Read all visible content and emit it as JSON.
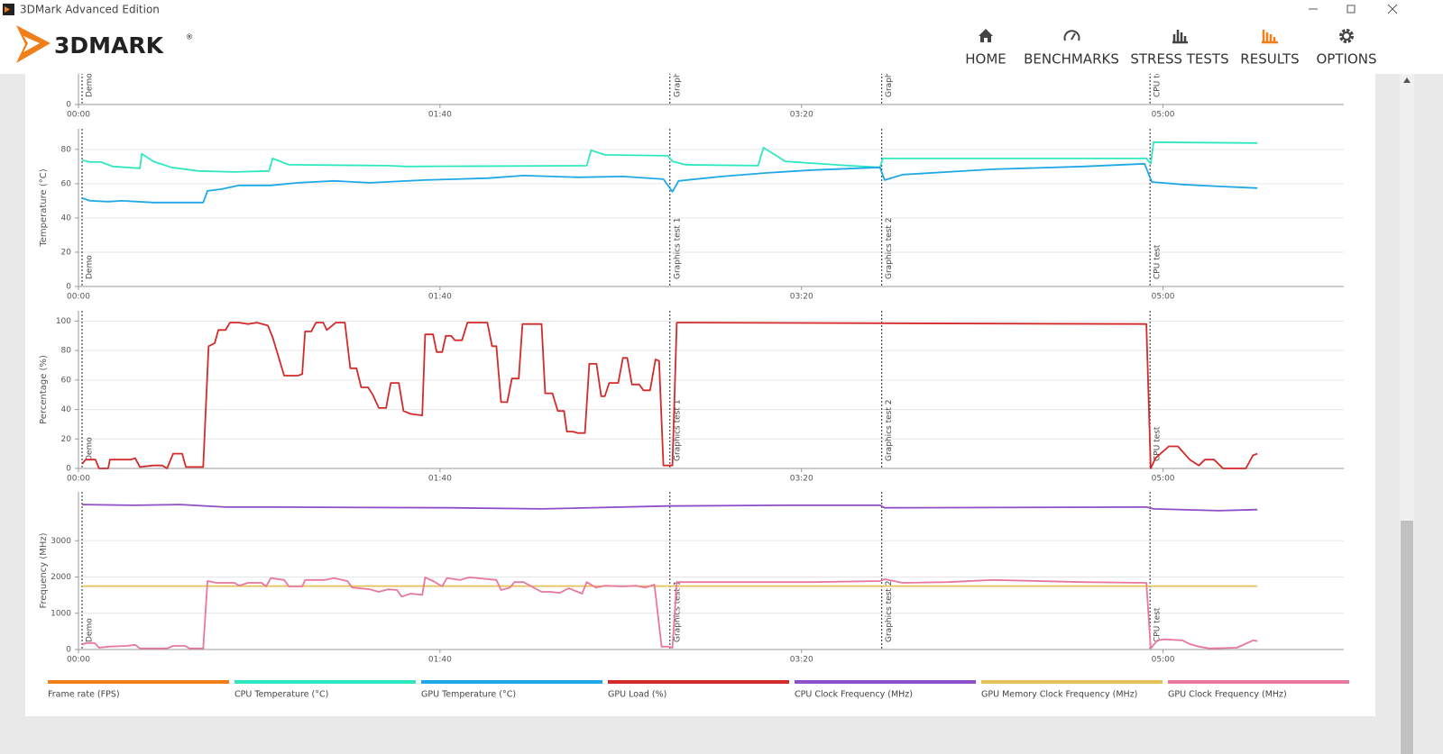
{
  "window": {
    "title": "3DMark Advanced Edition"
  },
  "brand": {
    "name": "3DMARK",
    "mark": "®"
  },
  "nav": [
    {
      "label": "HOME"
    },
    {
      "label": "BENCHMARKS"
    },
    {
      "label": "STRESS TESTS"
    },
    {
      "label": "RESULTS",
      "active": true
    },
    {
      "label": "OPTIONS"
    }
  ],
  "markers": [
    {
      "x": 1.0,
      "label": "Demo"
    },
    {
      "x": 163.6,
      "label": "Graphics test 1"
    },
    {
      "x": 222.2,
      "label": "Graphics test 2"
    },
    {
      "x": 296.4,
      "label": "CPU test"
    }
  ],
  "legend": [
    {
      "name": "Frame rate (FPS)",
      "color": "#f07f1a"
    },
    {
      "name": "CPU Temperature (°C)",
      "color": "#2ee8c0"
    },
    {
      "name": "GPU Temperature (°C)",
      "color": "#1ea8e8"
    },
    {
      "name": "GPU Load (%)",
      "color": "#d42a2a"
    },
    {
      "name": "CPU Clock Frequency (MHz)",
      "color": "#8e4fc9"
    },
    {
      "name": "GPU Memory Clock Frequency (MHz)",
      "color": "#e6c15a"
    },
    {
      "name": "GPU Clock Frequency (MHz)",
      "color": "#e8789e"
    }
  ],
  "chart_data": [
    {
      "type": "line",
      "xlim": [
        0,
        350
      ],
      "xticks": [
        {
          "value": 0,
          "label": "00:00"
        },
        {
          "value": 100,
          "label": "01:40"
        },
        {
          "value": 200,
          "label": "03:20"
        },
        {
          "value": 300,
          "label": "05:00"
        }
      ],
      "ylim": [
        0,
        100
      ],
      "yticks": [
        0
      ],
      "grid": true,
      "series": []
    },
    {
      "type": "line",
      "y_label": "Temperature (°C)",
      "xlim": [
        0,
        350
      ],
      "xticks": [
        {
          "value": 0,
          "label": "00:00"
        },
        {
          "value": 100,
          "label": "01:40"
        },
        {
          "value": 200,
          "label": "03:20"
        },
        {
          "value": 300,
          "label": "05:00"
        }
      ],
      "ylim": [
        0,
        92
      ],
      "yticks": [
        0,
        20,
        40,
        60,
        80
      ],
      "grid": true,
      "series": [
        {
          "color": "#2ee8c0",
          "x": [
            1.0,
            3.2,
            6.2,
            9.5,
            17.0,
            17.5,
            20.7,
            25.7,
            33.2,
            43.2,
            52.7,
            53.7,
            58.2,
            85.6,
            90.6,
            140.6,
            141.8,
            145.6,
            163.0,
            164.3,
            168.0,
            188.0,
            189.5,
            195.5,
            213.0,
            221.7,
            222.5,
            295.4,
            296.6,
            297.4,
            326.1
          ],
          "values": [
            73.7,
            72.6,
            72.6,
            70,
            69,
            77.4,
            73,
            69.5,
            67.4,
            66.8,
            67.4,
            74.7,
            71,
            70.5,
            70,
            70.5,
            79.5,
            76.8,
            76.3,
            73,
            71,
            70.5,
            81,
            73,
            70.5,
            69.5,
            74.7,
            74.7,
            71.6,
            84.2,
            83.7
          ]
        },
        {
          "color": "#1ea8e8",
          "x": [
            1.0,
            3.2,
            8.2,
            12.0,
            20.7,
            34.5,
            35.7,
            39.5,
            44.4,
            53.2,
            60.7,
            70.7,
            80.6,
            95.6,
            113.1,
            123.1,
            138.1,
            150.6,
            161.8,
            164.3,
            166.0,
            178.0,
            190.5,
            203.0,
            221.7,
            223.0,
            228.0,
            240.4,
            252.9,
            277.9,
            294.9,
            296.9,
            305.4,
            315.4,
            326.1
          ],
          "values": [
            51.6,
            50,
            49.5,
            50,
            49,
            49,
            55.8,
            56.8,
            59,
            59,
            60.5,
            61.6,
            60.5,
            62.1,
            63.2,
            64.7,
            63.7,
            64.2,
            62.6,
            55.3,
            61.6,
            64.2,
            66.3,
            67.9,
            69.5,
            62.1,
            65.3,
            66.8,
            68.4,
            70,
            71.6,
            61,
            59.5,
            58.4,
            57.4
          ]
        }
      ]
    },
    {
      "type": "line",
      "y_label": "Percentage (%)",
      "xlim": [
        0,
        350
      ],
      "xticks": [
        {
          "value": 0,
          "label": "00:00"
        },
        {
          "value": 100,
          "label": "01:40"
        },
        {
          "value": 200,
          "label": "03:20"
        },
        {
          "value": 300,
          "label": "05:00"
        }
      ],
      "ylim": [
        0,
        107
      ],
      "yticks": [
        0,
        20,
        40,
        60,
        80,
        100
      ],
      "grid": true,
      "series": [
        {
          "color": "#d42a2a",
          "x": [
            1.0,
            2.0,
            4.7,
            5.7,
            8.2,
            8.7,
            14.5,
            15.7,
            17.0,
            20.7,
            23.2,
            24.5,
            26.2,
            28.7,
            29.7,
            34.5,
            36.0,
            37.7,
            38.7,
            40.7,
            41.9,
            44.4,
            46.9,
            49.4,
            52.4,
            53.7,
            56.9,
            60.7,
            61.9,
            62.7,
            64.4,
            65.7,
            67.7,
            68.7,
            71.2,
            73.7,
            75.2,
            76.9,
            78.2,
            80.1,
            81.4,
            83.1,
            85.1,
            86.4,
            88.6,
            89.9,
            91.9,
            95.1,
            95.9,
            98.1,
            99.1,
            100.6,
            101.6,
            103.1,
            104.1,
            106.1,
            107.6,
            113.1,
            114.4,
            115.6,
            116.9,
            118.6,
            119.9,
            121.8,
            122.8,
            128.1,
            129.1,
            131.1,
            132.6,
            134.3,
            135.1,
            136.8,
            138.1,
            140.1,
            141.3,
            143.3,
            144.6,
            145.6,
            146.8,
            149.3,
            150.6,
            151.8,
            153.1,
            155.1,
            156.3,
            158.1,
            159.6,
            160.6,
            161.8,
            164.3,
            165.5,
            295.4,
            296.6,
            297.9,
            301.6,
            304.1,
            307.4,
            309.9,
            311.6,
            314.1,
            316.6,
            322.9,
            324.9,
            326.1
          ],
          "values": [
            3,
            6,
            6,
            0,
            0,
            6,
            6,
            7,
            1,
            2,
            2,
            0,
            10,
            10,
            1,
            1,
            83,
            85,
            94,
            94,
            99,
            99,
            98,
            99,
            97,
            89,
            63,
            63,
            64,
            93,
            93,
            99,
            99,
            94,
            99,
            99,
            68,
            68,
            55,
            55,
            50,
            41,
            41,
            58,
            58,
            39,
            37,
            36,
            91,
            91,
            79,
            79,
            90,
            90,
            87,
            87,
            99,
            99,
            83,
            83,
            45,
            45,
            61,
            61,
            98,
            98,
            51,
            51,
            39,
            39,
            25,
            25,
            24,
            24,
            71,
            71,
            49,
            49,
            58,
            58,
            75,
            75,
            57,
            57,
            53,
            53,
            74,
            73,
            2,
            2,
            99,
            98,
            0,
            7,
            15,
            15,
            6,
            2,
            6,
            6,
            0,
            0,
            9,
            10
          ]
        }
      ]
    },
    {
      "type": "line",
      "y_label": "Frequency (MHz)",
      "xlim": [
        0,
        350
      ],
      "xticks": [
        {
          "value": 0,
          "label": "00:00"
        },
        {
          "value": 100,
          "label": "01:40"
        },
        {
          "value": 200,
          "label": "03:20"
        },
        {
          "value": 300,
          "label": "05:00"
        }
      ],
      "ylim": [
        0,
        4350
      ],
      "yticks": [
        0,
        1000,
        2000,
        3000
      ],
      "grid": true,
      "series": [
        {
          "color": "#8e4fc9",
          "x": [
            1.0,
            15.7,
            28.2,
            40.7,
            53.2,
            103.1,
            128.1,
            163.0,
            195.5,
            221.7,
            223.0,
            295.4,
            297.4,
            315.4,
            326.1
          ],
          "values": [
            4000,
            3980,
            4000,
            3930,
            3930,
            3910,
            3880,
            3960,
            3980,
            3980,
            3910,
            3930,
            3880,
            3830,
            3860
          ]
        },
        {
          "color": "#e6c15a",
          "x": [
            1.0,
            326.1
          ],
          "values": [
            1750,
            1750
          ]
        },
        {
          "color": "#e8789e",
          "x": [
            1.0,
            2.0,
            4.5,
            5.7,
            8.2,
            13.2,
            15.7,
            17.0,
            24.5,
            26.2,
            29.5,
            30.7,
            34.5,
            35.7,
            38.2,
            43.2,
            44.4,
            46.9,
            50.7,
            51.9,
            53.2,
            56.9,
            58.2,
            61.9,
            62.7,
            68.2,
            70.7,
            74.4,
            75.7,
            80.6,
            83.1,
            85.6,
            88.1,
            89.4,
            91.9,
            95.1,
            95.9,
            98.1,
            100.6,
            101.9,
            105.6,
            108.1,
            115.6,
            116.9,
            119.4,
            120.6,
            123.1,
            128.1,
            130.6,
            133.1,
            135.6,
            139.3,
            140.6,
            143.1,
            145.6,
            150.6,
            154.3,
            156.8,
            159.3,
            161.3,
            163.0,
            164.3,
            165.5,
            203.0,
            221.7,
            223.0,
            228.0,
            240.4,
            252.9,
            277.9,
            295.4,
            296.6,
            298.4,
            300.4,
            305.4,
            307.4,
            309.9,
            312.9,
            320.4,
            324.9,
            326.1
          ],
          "values": [
            130,
            180,
            180,
            50,
            80,
            100,
            130,
            30,
            30,
            100,
            100,
            30,
            30,
            1890,
            1840,
            1840,
            1760,
            1840,
            1840,
            1740,
            1970,
            1920,
            1740,
            1740,
            1920,
            1920,
            1970,
            1890,
            1710,
            1660,
            1590,
            1660,
            1640,
            1460,
            1540,
            1510,
            1990,
            1890,
            1740,
            1970,
            1920,
            1990,
            1920,
            1640,
            1710,
            1860,
            1860,
            1590,
            1590,
            1560,
            1690,
            1540,
            1860,
            1710,
            1760,
            1740,
            1760,
            1710,
            1790,
            80,
            80,
            50,
            1860,
            1860,
            1890,
            1940,
            1840,
            1860,
            1920,
            1860,
            1840,
            30,
            250,
            280,
            250,
            150,
            80,
            30,
            50,
            250,
            230
          ]
        }
      ]
    }
  ]
}
